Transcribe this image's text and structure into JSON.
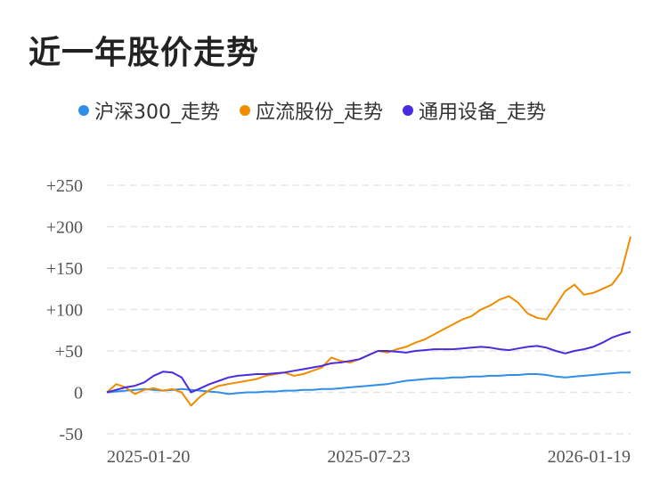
{
  "title": "近一年股价走势",
  "chart_data": {
    "type": "line",
    "x_ticks": [
      "2025-01-20",
      "2025-07-23",
      "2026-01-19"
    ],
    "y_ticks": [
      "+250",
      "+200",
      "+150",
      "+100",
      "+50",
      "0",
      "-50"
    ],
    "ylim": [
      -50,
      250
    ],
    "grid": true,
    "legend_position": "top",
    "series": [
      {
        "name": "沪深300_走势",
        "color": "#2f8fe8",
        "values": [
          0,
          1,
          2,
          3,
          4,
          3,
          2,
          3,
          4,
          3,
          2,
          1,
          0,
          -2,
          -1,
          0,
          0,
          1,
          1,
          2,
          2,
          3,
          3,
          4,
          4,
          5,
          6,
          7,
          8,
          9,
          10,
          12,
          14,
          15,
          16,
          17,
          17,
          18,
          18,
          19,
          19,
          20,
          20,
          21,
          21,
          22,
          22,
          21,
          19,
          18,
          19,
          20,
          21,
          22,
          23,
          24,
          24
        ]
      },
      {
        "name": "应流股份_走势",
        "color": "#f08c00",
        "values": [
          0,
          10,
          6,
          -2,
          3,
          5,
          2,
          4,
          0,
          -16,
          -5,
          3,
          8,
          10,
          12,
          14,
          16,
          20,
          22,
          24,
          20,
          22,
          26,
          30,
          42,
          38,
          36,
          40,
          45,
          50,
          48,
          52,
          55,
          60,
          64,
          70,
          76,
          82,
          88,
          92,
          100,
          105,
          112,
          116,
          108,
          95,
          90,
          88,
          105,
          122,
          130,
          118,
          120,
          125,
          130,
          145,
          188
        ]
      },
      {
        "name": "通用设备_走势",
        "color": "#4a2be0",
        "values": [
          0,
          3,
          6,
          8,
          12,
          20,
          25,
          24,
          18,
          0,
          5,
          10,
          14,
          18,
          20,
          21,
          22,
          22,
          23,
          24,
          26,
          28,
          30,
          32,
          35,
          36,
          38,
          40,
          45,
          50,
          50,
          49,
          48,
          50,
          51,
          52,
          52,
          52,
          53,
          54,
          55,
          54,
          52,
          51,
          53,
          55,
          56,
          54,
          50,
          47,
          50,
          52,
          55,
          60,
          66,
          70,
          73
        ]
      }
    ]
  }
}
